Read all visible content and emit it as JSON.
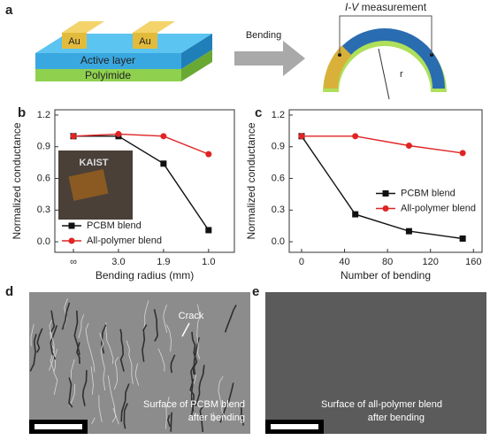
{
  "figure": {
    "panel_labels": [
      "a",
      "b",
      "c",
      "d",
      "e"
    ],
    "diagram": {
      "electrode_labels": [
        "Au",
        "Au"
      ],
      "active_layer": "Active layer",
      "substrate": "Polyimide",
      "arrow": "Bending",
      "measurement_prefix": "I-V",
      "measurement_suffix": "measurement",
      "radius": "r"
    },
    "inset_text": "KAIST",
    "sem": [
      {
        "annotation": "Crack",
        "caption": [
          "Surface of PCBM blend",
          "after bending"
        ]
      },
      {
        "caption": [
          "Surface of all-polymer blend",
          "after bending"
        ]
      }
    ]
  },
  "chart_data": [
    {
      "type": "line",
      "xlabel": "Bending radius (mm)",
      "ylabel": "Normalized conductance",
      "categories": [
        "∞",
        "3.0",
        "1.9",
        "1.0"
      ],
      "ylim": [
        -0.1,
        1.25
      ],
      "yticks": [
        {
          "value": 0,
          "label": "0.0"
        },
        0.3,
        0.6,
        0.9,
        1.2
      ],
      "legend": "lower left",
      "series": [
        {
          "name": "PCBM blend",
          "color": "#111111",
          "marker": "square",
          "values": [
            1.0,
            1.0,
            0.74,
            0.11
          ]
        },
        {
          "name": "All-polymer blend",
          "color": "#e02424",
          "marker": "circle",
          "values": [
            1.0,
            1.02,
            1.0,
            0.83
          ]
        }
      ]
    },
    {
      "type": "line",
      "xlabel": "Number of bending",
      "ylabel": "Normalized conductance",
      "x": [
        0,
        50,
        100,
        150
      ],
      "xlim": [
        -11.5,
        168
      ],
      "xticks": [
        0,
        40,
        80,
        120,
        160
      ],
      "ylim": [
        -0.1,
        1.25
      ],
      "yticks": [
        {
          "value": 0,
          "label": "0.0"
        },
        0.3,
        0.6,
        0.9,
        1.2
      ],
      "legend": "center right",
      "series": [
        {
          "name": "PCBM blend",
          "color": "#111111",
          "marker": "square",
          "values": [
            1.0,
            0.26,
            0.1,
            0.03
          ]
        },
        {
          "name": "All-polymer blend",
          "color": "#e02424",
          "marker": "circle",
          "values": [
            1.0,
            1.0,
            0.91,
            0.84
          ]
        }
      ]
    }
  ]
}
